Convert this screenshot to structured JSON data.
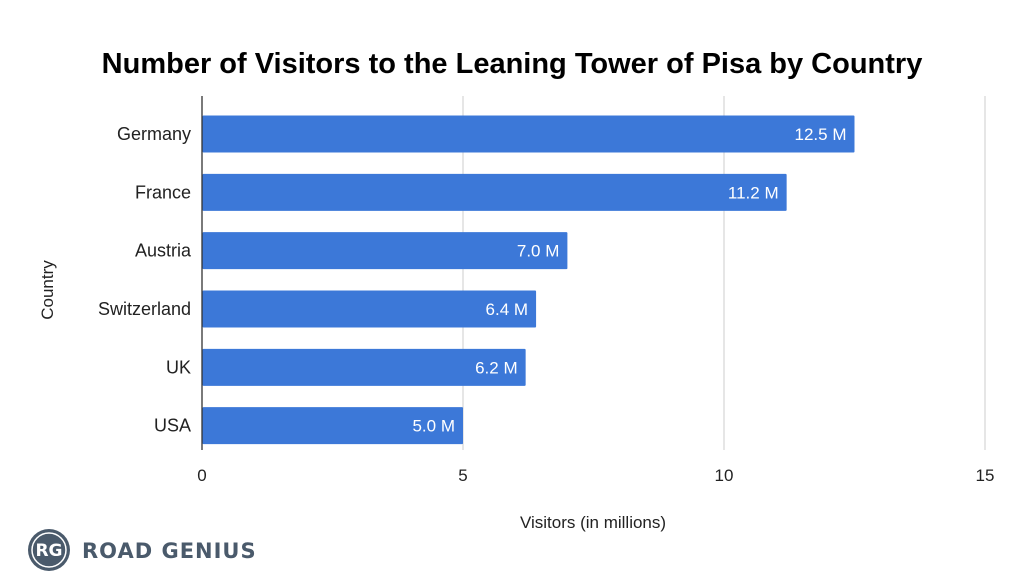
{
  "chart_data": {
    "type": "bar",
    "orientation": "horizontal",
    "title": "Number of Visitors to the Leaning Tower of Pisa by Country",
    "xlabel": "Visitors (in millions)",
    "ylabel": "Country",
    "categories": [
      "Germany",
      "France",
      "Austria",
      "Switzerland",
      "UK",
      "USA"
    ],
    "values": [
      12.5,
      11.2,
      7.0,
      6.4,
      6.2,
      5.0
    ],
    "data_labels": [
      "12.5 M",
      "11.2 M",
      "7.0 M",
      "6.4 M",
      "6.2 M",
      "5.0 M"
    ],
    "xlim": [
      0,
      15
    ],
    "x_ticks": [
      0,
      5,
      10,
      15
    ],
    "x_tick_labels": [
      "0",
      "5",
      "10",
      "15"
    ],
    "grid": true,
    "bar_color": "#3c78d8",
    "grid_color": "#cccccc"
  },
  "brand": {
    "name": "ROAD GENIUS",
    "monogram": "RG",
    "color": "#4a5a6b"
  }
}
